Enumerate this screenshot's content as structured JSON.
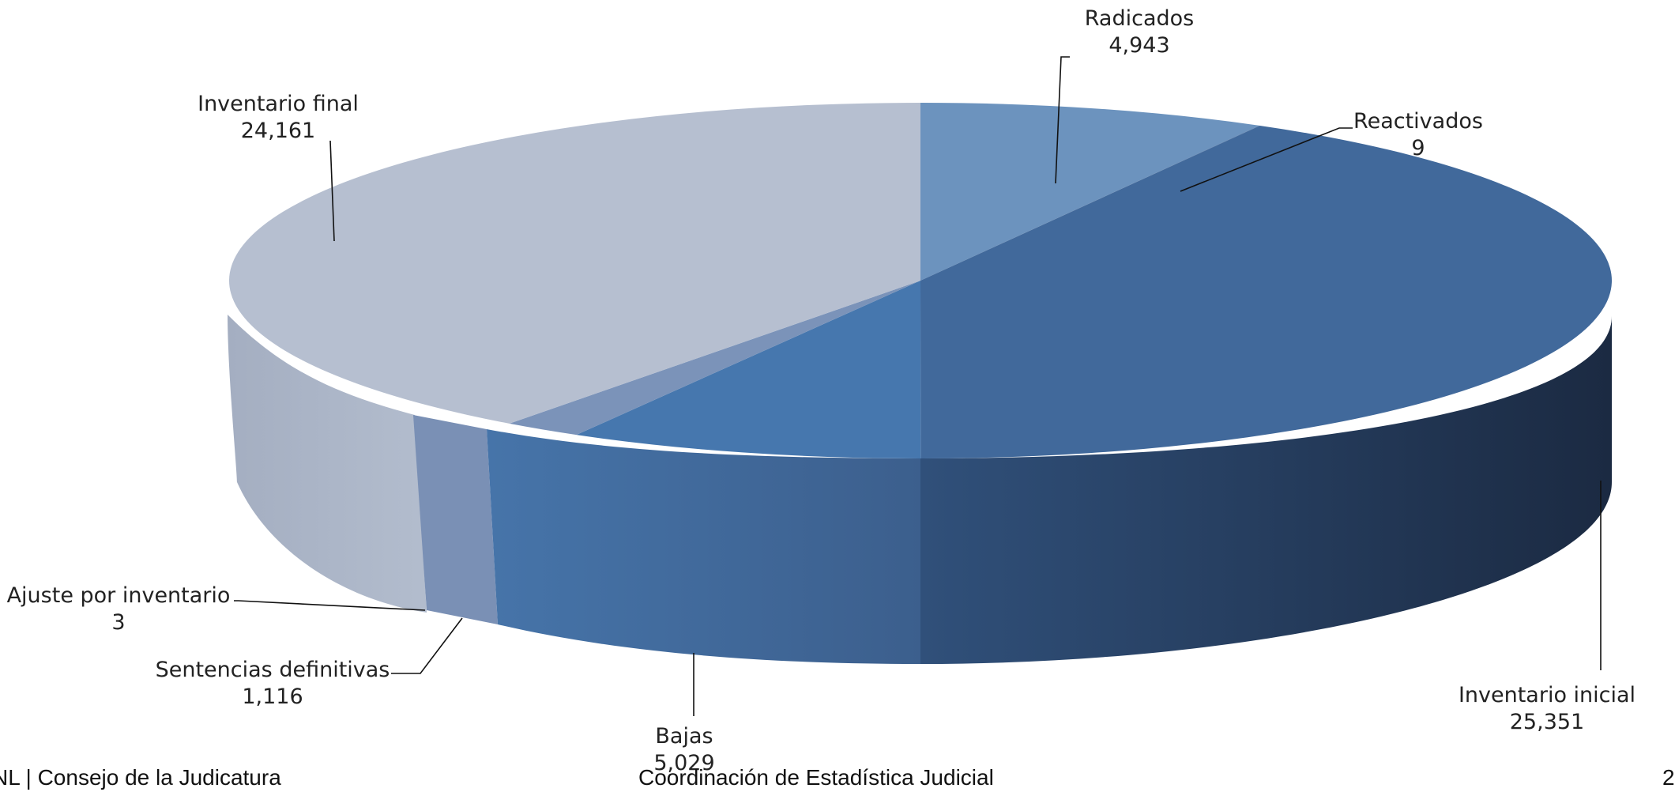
{
  "chart_data": {
    "type": "pie",
    "variant": "3d",
    "title": "",
    "categories": [
      "Radicados",
      "Reactivados",
      "Inventario inicial",
      "Bajas",
      "Sentencias definitivas",
      "Ajuste por inventario",
      "Inventario final"
    ],
    "values": [
      4943,
      9,
      25351,
      5029,
      1116,
      3,
      24161
    ],
    "value_labels": [
      "4,943",
      "9",
      "25,351",
      "5,029",
      "1,116",
      "3",
      "24,161"
    ],
    "colors": [
      "#6c93be",
      "#41699b",
      "#41699b",
      "#4677ae",
      "#7b93b9",
      "#7b93b9",
      "#b6bfd0"
    ],
    "legend": "none"
  },
  "footer": {
    "left": "NL | Consejo de la Judicatura",
    "center": "Coordinación de Estadística Judicial",
    "right": "2"
  }
}
